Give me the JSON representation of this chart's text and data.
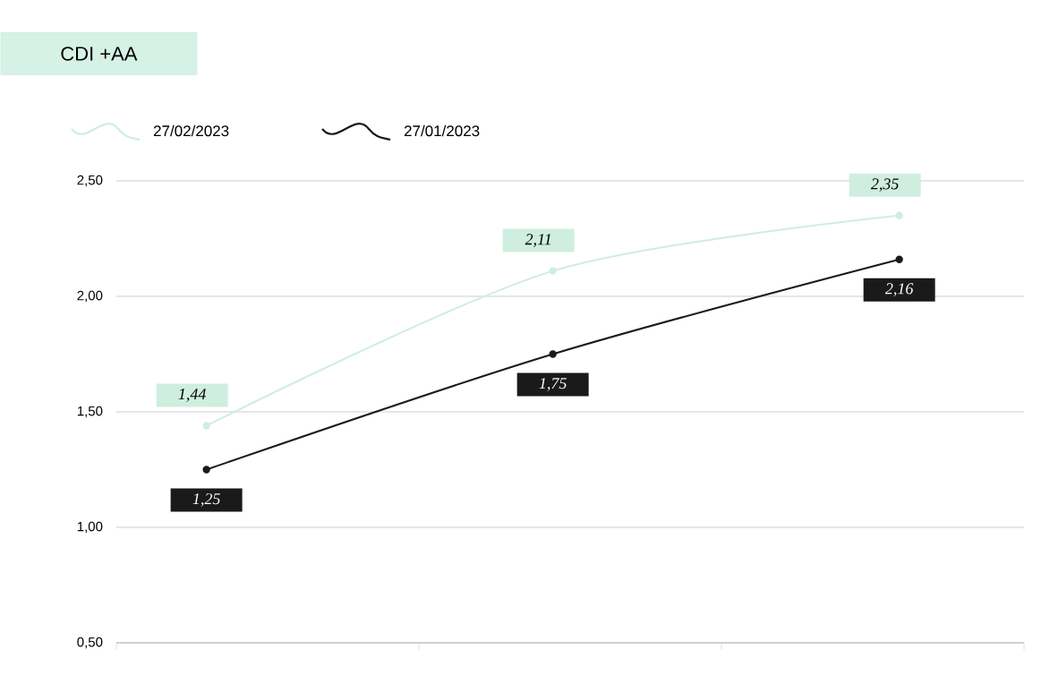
{
  "chart_data": {
    "type": "line",
    "title": "CDI +AA",
    "categories": [
      null,
      null,
      null
    ],
    "series": [
      {
        "name": "27/02/2023",
        "color": "#cfeee0",
        "values": [
          1.44,
          2.11,
          2.35
        ],
        "value_labels": [
          "1,44",
          "2,11",
          "2,35"
        ]
      },
      {
        "name": "27/01/2023",
        "color": "#1a1a1a",
        "values": [
          1.25,
          1.75,
          2.16
        ],
        "value_labels": [
          "1,25",
          "1,75",
          "2,16"
        ]
      }
    ],
    "ylim": [
      0.5,
      2.5
    ],
    "yticks": [
      {
        "value": 0.5,
        "label": "0,50"
      },
      {
        "value": 1.0,
        "label": "1,00"
      },
      {
        "value": 1.5,
        "label": "1,50"
      },
      {
        "value": 2.0,
        "label": "2,00"
      },
      {
        "value": 2.5,
        "label": "2,50"
      }
    ],
    "grid": "y",
    "legend": "top left",
    "tick_labels": "y",
    "marker": "circle",
    "line_style": "solid"
  }
}
